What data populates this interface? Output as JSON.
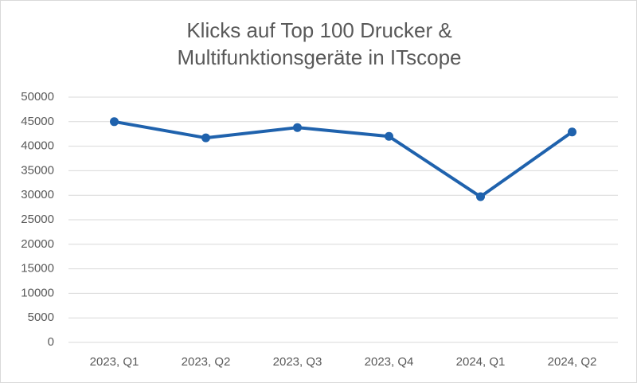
{
  "chart_data": {
    "type": "line",
    "title": "Klicks auf Top 100 Drucker & Multifunktionsgeräte in ITscope",
    "categories": [
      "2023, Q1",
      "2023, Q2",
      "2023, Q3",
      "2023, Q4",
      "2024, Q1",
      "2024, Q2"
    ],
    "values": [
      45000,
      41700,
      43800,
      42000,
      29700,
      42900
    ],
    "color": "#1f62ad",
    "ylim": [
      0,
      50000
    ],
    "yticks": [
      0,
      5000,
      10000,
      15000,
      20000,
      25000,
      30000,
      35000,
      40000,
      45000,
      50000
    ],
    "grid": true
  }
}
